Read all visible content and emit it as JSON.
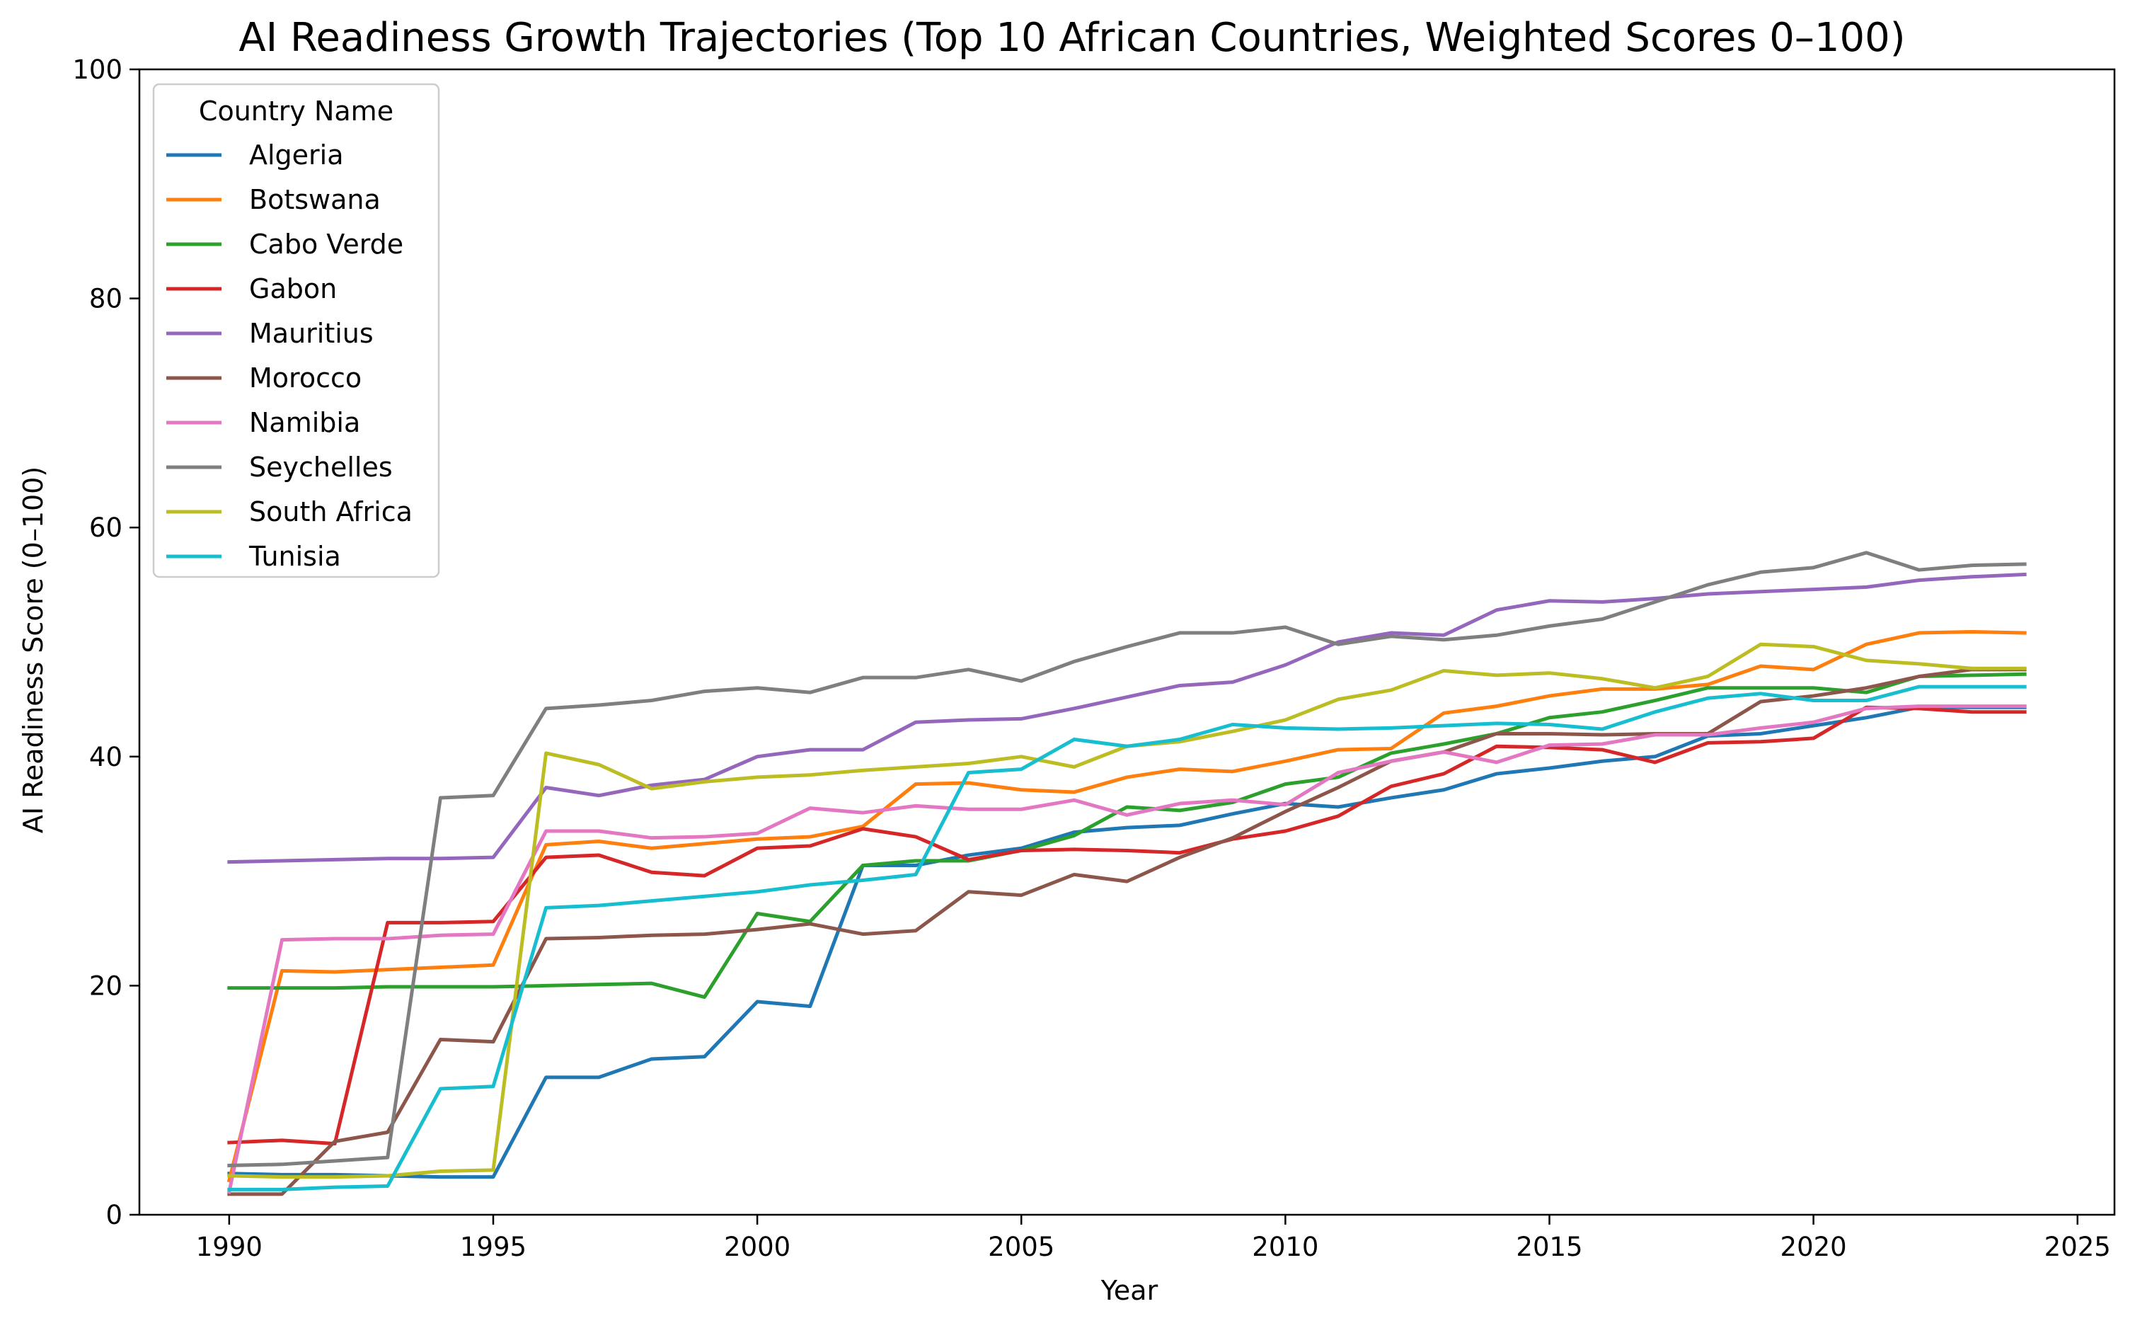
{
  "chart_data": {
    "type": "line",
    "title": "AI Readiness Growth Trajectories (Top 10 African Countries, Weighted Scores 0–100)",
    "xlabel": "Year",
    "ylabel": "AI Readiness Score (0–100)",
    "xlim": [
      1988.3,
      2025.7
    ],
    "ylim": [
      0,
      100
    ],
    "xticks": [
      1990,
      1995,
      2000,
      2005,
      2010,
      2015,
      2020,
      2025
    ],
    "yticks": [
      0,
      20,
      40,
      60,
      80,
      100
    ],
    "grid": false,
    "legend": {
      "title": "Country Name",
      "placement": "upper-left"
    },
    "x": [
      1990,
      1991,
      1992,
      1993,
      1994,
      1995,
      1996,
      1997,
      1998,
      1999,
      2000,
      2001,
      2002,
      2003,
      2004,
      2005,
      2006,
      2007,
      2008,
      2009,
      2010,
      2011,
      2012,
      2013,
      2014,
      2015,
      2016,
      2017,
      2018,
      2019,
      2020,
      2021,
      2022,
      2023,
      2024
    ],
    "series": [
      {
        "name": "Algeria",
        "color": "#1f77b4",
        "values": [
          3.6,
          3.5,
          3.5,
          3.4,
          3.3,
          3.3,
          12.0,
          12.0,
          13.6,
          13.8,
          18.6,
          18.2,
          30.5,
          30.5,
          31.4,
          32.0,
          33.4,
          33.8,
          34.0,
          35.0,
          35.9,
          35.6,
          36.4,
          37.1,
          38.5,
          39.0,
          39.6,
          40.0,
          41.8,
          42.0,
          42.7,
          43.4,
          44.3,
          44.3,
          44.3
        ]
      },
      {
        "name": "Botswana",
        "color": "#ff7f0e",
        "values": [
          3.0,
          21.3,
          21.2,
          21.4,
          21.6,
          21.8,
          32.3,
          32.6,
          32.0,
          32.4,
          32.8,
          33.0,
          33.9,
          37.6,
          37.7,
          37.1,
          36.9,
          38.2,
          38.9,
          38.7,
          39.6,
          40.6,
          40.7,
          43.8,
          44.4,
          45.3,
          45.9,
          45.9,
          46.3,
          47.9,
          47.6,
          49.8,
          50.8,
          50.9,
          50.8
        ]
      },
      {
        "name": "Cabo Verde",
        "color": "#2ca02c",
        "values": [
          19.8,
          19.8,
          19.8,
          19.9,
          19.9,
          19.9,
          20.0,
          20.1,
          20.2,
          19.0,
          26.3,
          25.6,
          30.5,
          30.9,
          30.9,
          31.8,
          33.1,
          35.6,
          35.3,
          36.0,
          37.6,
          38.2,
          40.3,
          41.1,
          42.0,
          43.4,
          43.9,
          44.9,
          46.0,
          46.0,
          46.0,
          45.6,
          47.0,
          47.1,
          47.2
        ]
      },
      {
        "name": "Gabon",
        "color": "#d62728",
        "values": [
          6.3,
          6.5,
          6.2,
          25.5,
          25.5,
          25.6,
          31.2,
          31.4,
          29.9,
          29.6,
          32.0,
          32.2,
          33.7,
          33.0,
          31.0,
          31.8,
          31.9,
          31.8,
          31.6,
          32.8,
          33.5,
          34.8,
          37.4,
          38.5,
          40.9,
          40.8,
          40.6,
          39.5,
          41.2,
          41.3,
          41.6,
          44.3,
          44.2,
          43.9,
          43.9
        ]
      },
      {
        "name": "Mauritius",
        "color": "#9467bd",
        "values": [
          30.8,
          30.9,
          31.0,
          31.1,
          31.1,
          31.2,
          37.3,
          36.6,
          37.5,
          38.0,
          40.0,
          40.6,
          40.6,
          43.0,
          43.2,
          43.3,
          44.2,
          45.2,
          46.2,
          46.5,
          48.0,
          50.0,
          50.8,
          50.6,
          52.8,
          53.6,
          53.5,
          53.8,
          54.2,
          54.4,
          54.6,
          54.8,
          55.4,
          55.7,
          55.9
        ]
      },
      {
        "name": "Morocco",
        "color": "#8c564b",
        "values": [
          1.8,
          1.8,
          6.4,
          7.2,
          15.3,
          15.1,
          24.1,
          24.2,
          24.4,
          24.5,
          24.9,
          25.4,
          24.5,
          24.8,
          28.2,
          27.9,
          29.7,
          29.1,
          31.2,
          32.9,
          35.2,
          37.3,
          39.6,
          40.4,
          42.0,
          42.0,
          41.9,
          42.0,
          42.0,
          44.8,
          45.3,
          46.0,
          47.0,
          47.6,
          47.6
        ]
      },
      {
        "name": "Namibia",
        "color": "#e377c2",
        "values": [
          2.0,
          24.0,
          24.1,
          24.1,
          24.4,
          24.5,
          33.5,
          33.5,
          32.9,
          33.0,
          33.3,
          35.5,
          35.1,
          35.7,
          35.4,
          35.4,
          36.2,
          34.9,
          35.9,
          36.2,
          35.8,
          38.6,
          39.6,
          40.4,
          39.5,
          41.0,
          41.1,
          41.9,
          41.9,
          42.5,
          43.0,
          44.2,
          44.4,
          44.4,
          44.4
        ]
      },
      {
        "name": "Seychelles",
        "color": "#7f7f7f",
        "values": [
          4.3,
          4.4,
          4.7,
          5.0,
          36.4,
          36.6,
          44.2,
          44.5,
          44.9,
          45.7,
          46.0,
          45.6,
          46.9,
          46.9,
          47.6,
          46.6,
          48.3,
          49.6,
          50.8,
          50.8,
          51.3,
          49.8,
          50.5,
          50.2,
          50.6,
          51.4,
          52.0,
          53.5,
          55.0,
          56.1,
          56.5,
          57.8,
          56.3,
          56.7,
          56.8
        ]
      },
      {
        "name": "South Africa",
        "color": "#bcbd22",
        "values": [
          3.4,
          3.3,
          3.3,
          3.4,
          3.8,
          3.9,
          40.3,
          39.3,
          37.2,
          37.8,
          38.2,
          38.4,
          38.8,
          39.1,
          39.4,
          40.0,
          39.1,
          40.9,
          41.3,
          42.2,
          43.2,
          45.0,
          45.8,
          47.5,
          47.1,
          47.3,
          46.8,
          46.0,
          47.0,
          49.8,
          49.6,
          48.4,
          48.1,
          47.7,
          47.7
        ]
      },
      {
        "name": "Tunisia",
        "color": "#17becf",
        "values": [
          2.2,
          2.2,
          2.4,
          2.5,
          11.0,
          11.2,
          26.8,
          27.0,
          27.4,
          27.8,
          28.2,
          28.8,
          29.2,
          29.7,
          38.6,
          38.9,
          41.5,
          40.9,
          41.5,
          42.8,
          42.5,
          42.4,
          42.5,
          42.7,
          42.9,
          42.8,
          42.4,
          43.9,
          45.1,
          45.5,
          44.9,
          44.9,
          46.1,
          46.1,
          46.1
        ]
      }
    ]
  }
}
